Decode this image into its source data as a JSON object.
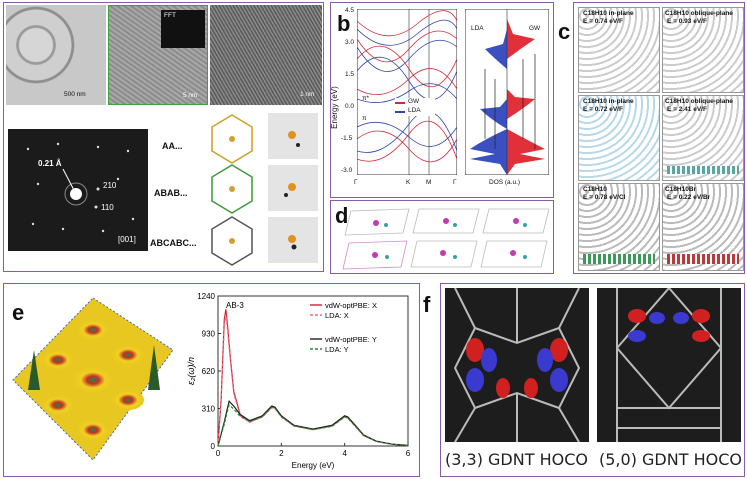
{
  "panel_a": {
    "label": "a",
    "tem_scalebars": [
      "500 nm",
      "5 nm",
      "1 nm"
    ],
    "inset_labels": [
      "FFT",
      "0.21 Å"
    ],
    "saed": {
      "d_spacing": "0.21 Å",
      "reflections": [
        "210",
        "110"
      ],
      "zone": "[001]"
    },
    "stacking": [
      "AA...",
      "ABAB...",
      "ABCABC..."
    ]
  },
  "panel_b": {
    "label": "b",
    "left_ylabel": "Energy (eV)",
    "left_yticks": [
      "4.5",
      "3.0",
      "1.5",
      "0.0",
      "-1.5",
      "-3.0"
    ],
    "left_xticks": [
      "Γ",
      "K",
      "M",
      "Γ"
    ],
    "legend": [
      "GW",
      "LDA"
    ],
    "band_labels": [
      "π*",
      "π"
    ],
    "right_labels": [
      "LDA",
      "GW"
    ],
    "right_xlabel": "DOS (a.u.)"
  },
  "panel_c": {
    "label": "c",
    "cells": [
      {
        "name": "C18H10 in-plane",
        "energy": "E = 0.74 eV/F"
      },
      {
        "name": "C18H10 oblique-plane",
        "energy": "E = 0.93 eV/F"
      },
      {
        "name": "C18H10 in-plane",
        "energy": "E = 0.72 eV/F"
      },
      {
        "name": "C18H10 oblique-plane",
        "energy": "E = 2.41 eV/F"
      },
      {
        "name": "C18H10",
        "energy": "E = 0.78 eV/Cl"
      },
      {
        "name": "C18H10Br",
        "energy": "E = 0.22 eV/Br"
      }
    ]
  },
  "panel_d": {
    "label": "d"
  },
  "panel_e": {
    "label": "e",
    "chart_title": "AB-3",
    "ylabel": "ε₂(ω)/n",
    "xlabel": "Energy (eV)",
    "yticks": [
      "1240",
      "930",
      "620",
      "310",
      "0"
    ],
    "xticks": [
      "0",
      "2",
      "4",
      "6"
    ],
    "legend": [
      "vdW-optPBE: X",
      "LDA: X",
      "vdW-optPBE: Y",
      "LDA: Y"
    ],
    "colors": {
      "x_opt": "#cc2233",
      "x_lda": "#e07080",
      "y_opt": "#222222",
      "y_lda": "#2a8a3a"
    }
  },
  "panel_f": {
    "label": "f",
    "captions": [
      "(3,3) GDNT HOCO",
      "(5,0) GDNT HOCO"
    ]
  },
  "chart_data": {
    "type": "line",
    "title": "AB-3",
    "xlabel": "Energy (eV)",
    "ylabel": "ε₂(ω)/n",
    "xlim": [
      0,
      6
    ],
    "ylim": [
      0,
      1240
    ],
    "series": [
      {
        "name": "vdW-optPBE: X",
        "x": [
          0,
          0.1,
          0.2,
          0.25,
          0.3,
          0.4,
          0.5,
          0.7,
          1.0,
          1.4,
          1.7,
          1.8,
          2.0,
          2.4,
          3.0,
          3.6,
          4.0,
          4.1,
          4.3,
          4.6,
          5.0,
          5.5,
          6.0
        ],
        "values": [
          0,
          400,
          1050,
          1130,
          1000,
          700,
          450,
          260,
          200,
          250,
          330,
          320,
          250,
          170,
          140,
          170,
          250,
          240,
          180,
          90,
          40,
          15,
          5
        ]
      },
      {
        "name": "LDA: X",
        "x": [
          0,
          0.1,
          0.2,
          0.25,
          0.3,
          0.4,
          0.5,
          0.7,
          1.0,
          1.4,
          1.7,
          1.8,
          2.0,
          2.4,
          3.0,
          3.6,
          4.0,
          4.1,
          4.3,
          4.6,
          5.0,
          5.5,
          6.0
        ],
        "values": [
          0,
          380,
          1000,
          1090,
          960,
          680,
          430,
          250,
          195,
          240,
          320,
          312,
          245,
          165,
          135,
          165,
          240,
          232,
          175,
          85,
          38,
          14,
          5
        ]
      },
      {
        "name": "vdW-optPBE: Y",
        "x": [
          0,
          0.2,
          0.35,
          0.5,
          0.7,
          1.0,
          1.4,
          1.7,
          1.8,
          2.0,
          2.4,
          3.0,
          3.6,
          4.0,
          4.1,
          4.3,
          4.6,
          5.0,
          5.5,
          6.0
        ],
        "values": [
          0,
          200,
          370,
          330,
          260,
          210,
          250,
          330,
          320,
          250,
          170,
          140,
          170,
          250,
          240,
          180,
          90,
          40,
          15,
          5
        ]
      },
      {
        "name": "LDA: Y",
        "x": [
          0,
          0.2,
          0.35,
          0.5,
          0.7,
          1.0,
          1.4,
          1.7,
          1.8,
          2.0,
          2.4,
          3.0,
          3.6,
          4.0,
          4.1,
          4.3,
          4.6,
          5.0,
          5.5,
          6.0
        ],
        "values": [
          0,
          180,
          340,
          305,
          245,
          200,
          240,
          318,
          310,
          240,
          165,
          135,
          162,
          240,
          230,
          172,
          85,
          38,
          14,
          5
        ]
      }
    ]
  }
}
